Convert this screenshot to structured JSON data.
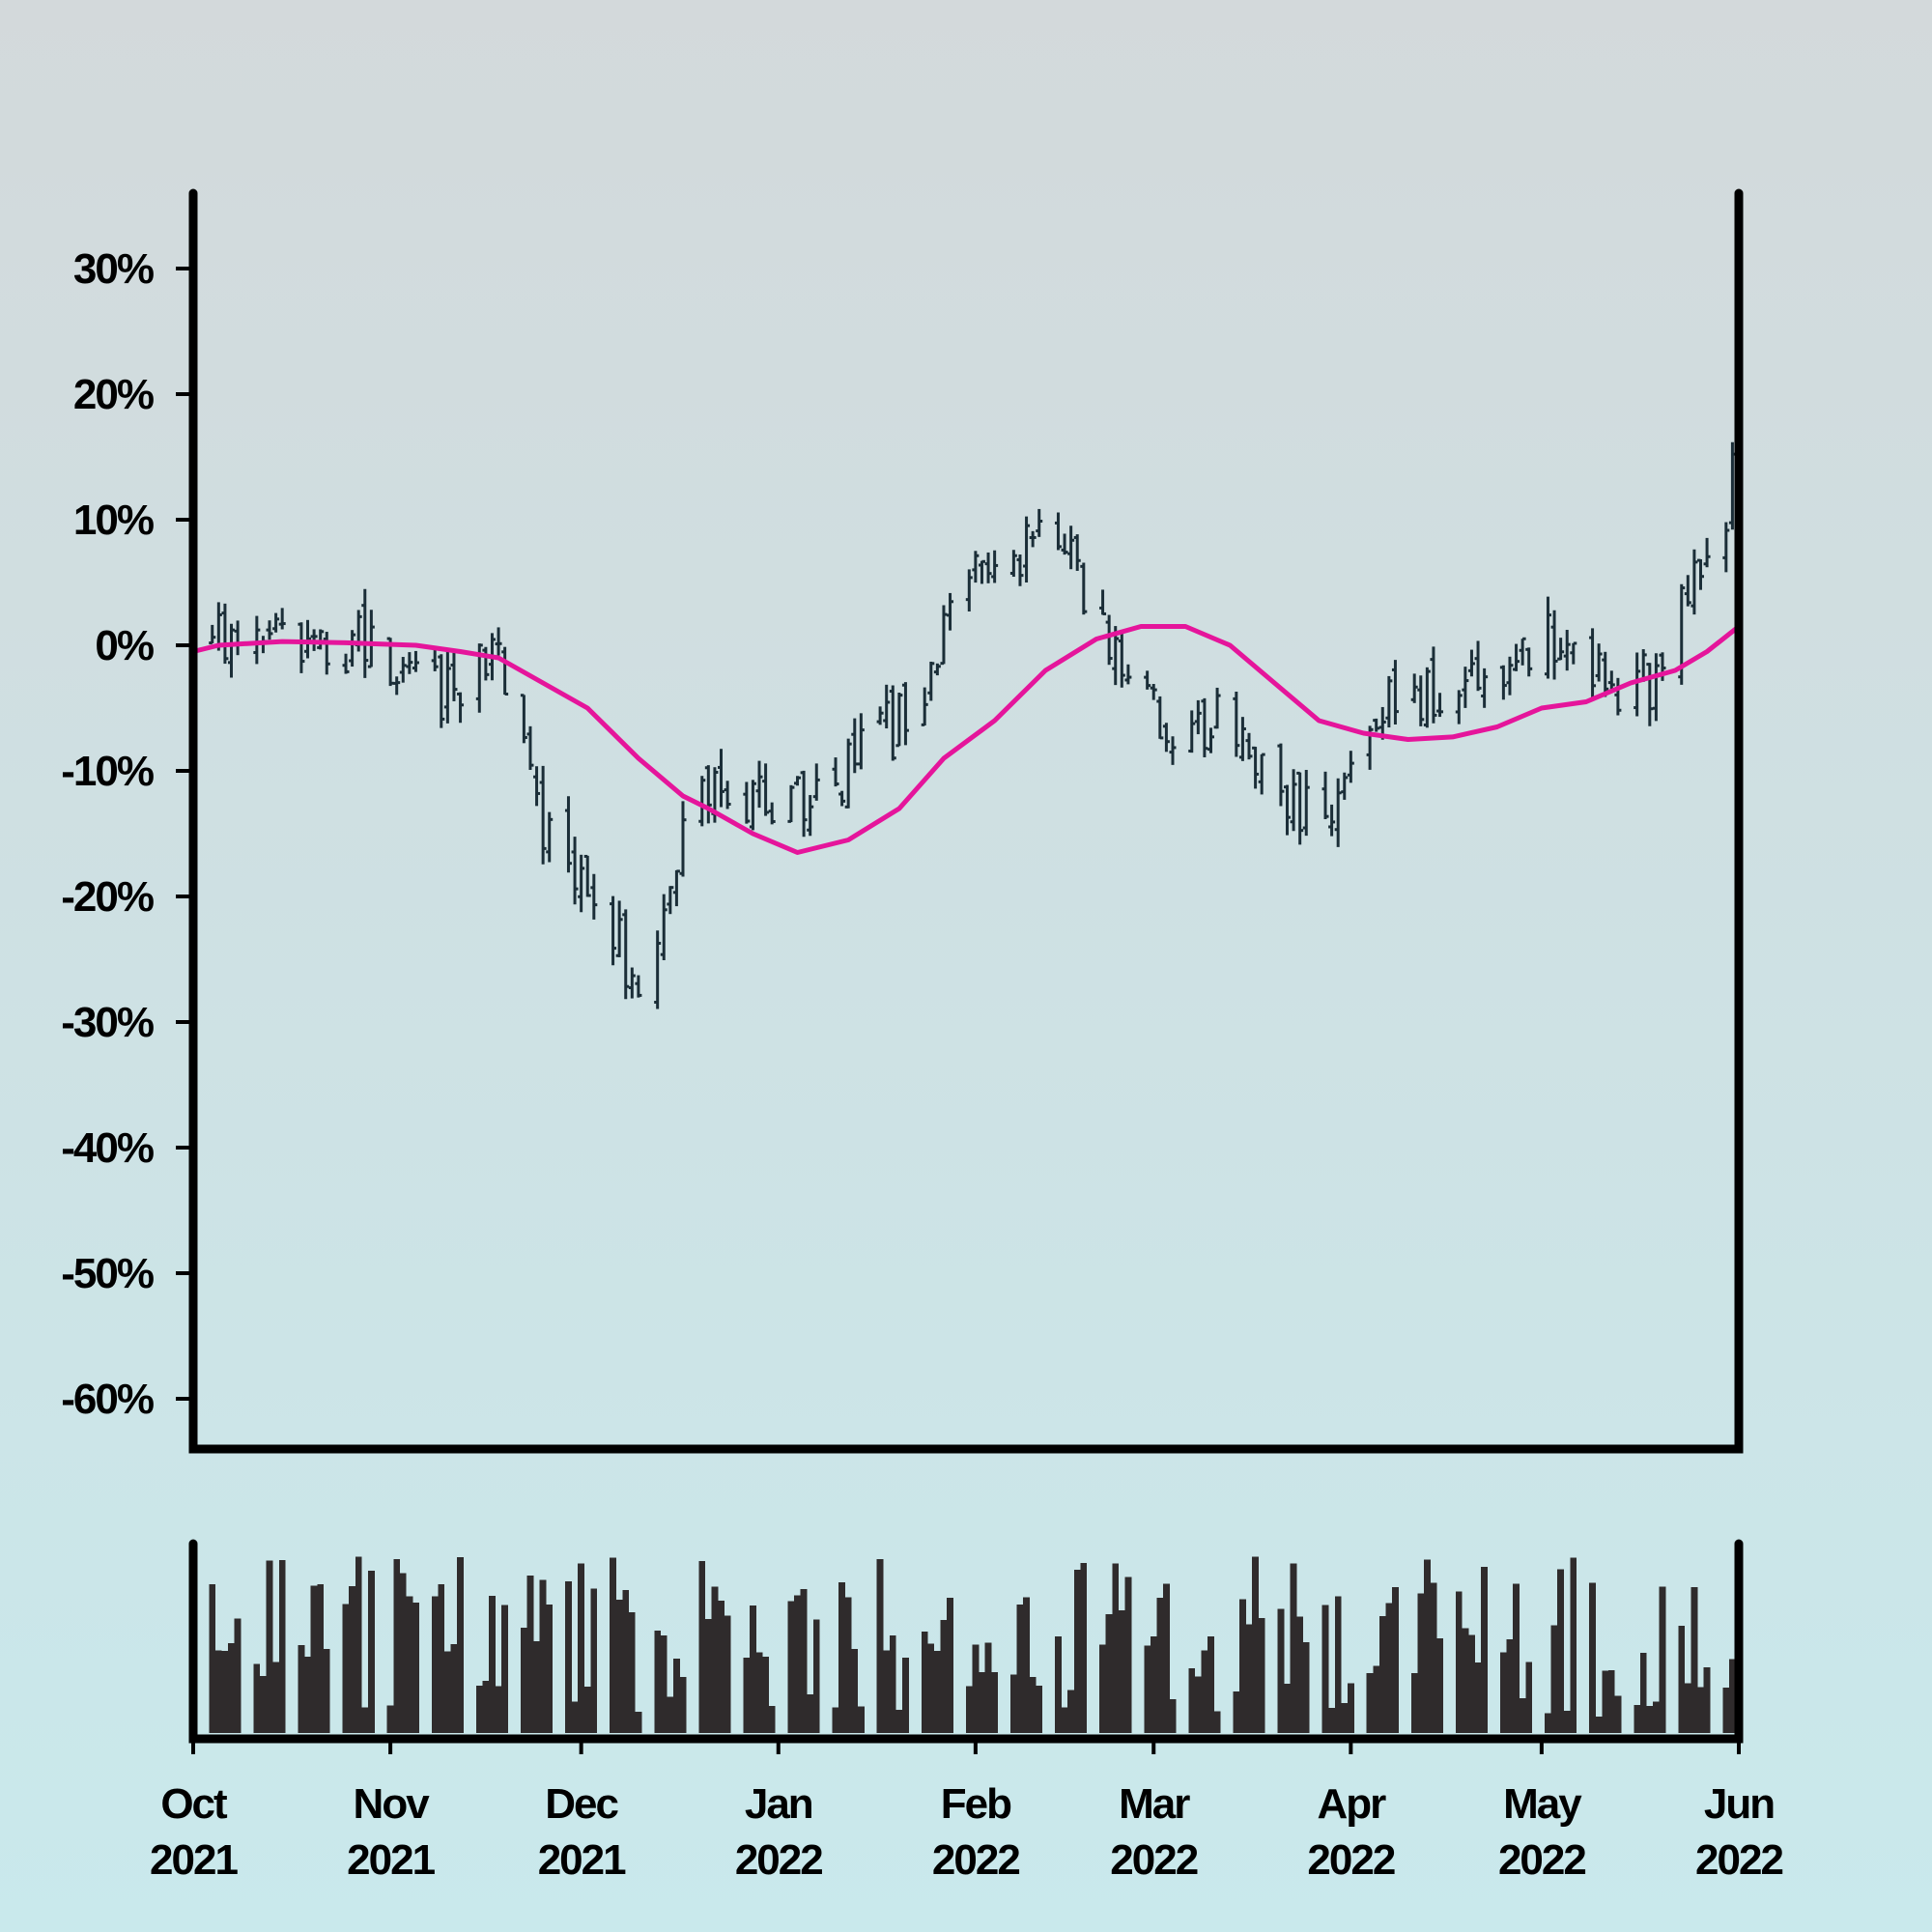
{
  "chart_data": [
    {
      "type": "ohlc",
      "ylabel": "",
      "ylim": [
        -0.64,
        0.36
      ],
      "yticks": [
        -0.6,
        -0.5,
        -0.4,
        -0.3,
        -0.2,
        -0.1,
        0.0,
        0.1,
        0.2,
        0.3
      ],
      "ytick_labels": [
        "-60%",
        "-50%",
        "-40%",
        "-30%",
        "-20%",
        "-10%",
        "0%",
        "10%",
        "20%",
        "30%"
      ],
      "xlim": [
        "2021-10-01",
        "2022-06-01"
      ],
      "grid": false,
      "colors": {
        "bars": "#1b2e38",
        "moving_average": "#e5159b"
      },
      "price_anchors": {
        "dates": [
          "2021-10-01",
          "2021-10-08",
          "2021-10-15",
          "2021-10-22",
          "2021-10-29",
          "2021-11-05",
          "2021-11-12",
          "2021-11-18",
          "2021-11-23",
          "2021-11-30",
          "2021-12-05",
          "2021-12-10",
          "2021-12-14",
          "2021-12-19",
          "2021-12-27",
          "2022-01-03",
          "2022-01-12",
          "2022-01-20",
          "2022-01-27",
          "2022-02-01",
          "2022-02-08",
          "2022-02-15",
          "2022-02-20",
          "2022-02-27",
          "2022-03-06",
          "2022-03-13",
          "2022-03-20",
          "2022-03-26",
          "2022-03-31",
          "2022-04-07",
          "2022-04-15",
          "2022-04-24",
          "2022-05-01",
          "2022-05-07",
          "2022-05-14",
          "2022-05-20",
          "2022-05-27",
          "2022-06-01"
        ],
        "close": [
          0.0,
          0.005,
          0.01,
          -0.01,
          0.005,
          -0.03,
          -0.04,
          0.0,
          -0.12,
          -0.19,
          -0.22,
          -0.27,
          -0.22,
          -0.11,
          -0.13,
          -0.12,
          -0.1,
          -0.06,
          0.0,
          0.08,
          0.07,
          0.08,
          0.02,
          -0.04,
          -0.07,
          -0.06,
          -0.12,
          -0.14,
          -0.1,
          -0.03,
          -0.04,
          -0.02,
          0.01,
          0.0,
          -0.04,
          -0.02,
          0.08,
          0.14
        ]
      },
      "moving_average": {
        "dates": [
          "2021-10-01",
          "2021-10-05",
          "2021-10-15",
          "2021-10-25",
          "2021-11-05",
          "2021-11-12",
          "2021-11-18",
          "2021-11-25",
          "2021-12-02",
          "2021-12-10",
          "2021-12-17",
          "2021-12-21",
          "2021-12-28",
          "2022-01-04",
          "2022-01-12",
          "2022-01-20",
          "2022-01-27",
          "2022-02-04",
          "2022-02-12",
          "2022-02-20",
          "2022-02-27",
          "2022-03-06",
          "2022-03-13",
          "2022-03-20",
          "2022-03-27",
          "2022-04-03",
          "2022-04-10",
          "2022-04-17",
          "2022-04-24",
          "2022-05-01",
          "2022-05-08",
          "2022-05-15",
          "2022-05-22",
          "2022-05-27",
          "2022-06-01"
        ],
        "values": [
          -0.005,
          0.0,
          0.003,
          0.002,
          0.0,
          -0.005,
          -0.01,
          -0.03,
          -0.05,
          -0.09,
          -0.12,
          -0.13,
          -0.15,
          -0.165,
          -0.155,
          -0.13,
          -0.09,
          -0.06,
          -0.02,
          0.005,
          0.015,
          0.015,
          0.0,
          -0.03,
          -0.06,
          -0.07,
          -0.075,
          -0.073,
          -0.065,
          -0.05,
          -0.045,
          -0.03,
          -0.02,
          -0.005,
          0.015
        ]
      }
    },
    {
      "type": "bar",
      "subtype": "volume",
      "ylabel": "",
      "xlim": [
        "2021-10-01",
        "2022-06-01"
      ],
      "color": "#2f2b2c",
      "xtick_dates": [
        "2021-10-01",
        "2021-11-01",
        "2021-12-01",
        "2022-01-01",
        "2022-02-01",
        "2022-03-01",
        "2022-04-01",
        "2022-05-01",
        "2022-06-01"
      ],
      "xtick_labels": [
        {
          "month": "Oct",
          "year": "2021"
        },
        {
          "month": "Nov",
          "year": "2021"
        },
        {
          "month": "Dec",
          "year": "2021"
        },
        {
          "month": "Jan",
          "year": "2022"
        },
        {
          "month": "Feb",
          "year": "2022"
        },
        {
          "month": "Mar",
          "year": "2022"
        },
        {
          "month": "Apr",
          "year": "2022"
        },
        {
          "month": "May",
          "year": "2022"
        },
        {
          "month": "Jun",
          "year": "2022"
        }
      ]
    }
  ]
}
